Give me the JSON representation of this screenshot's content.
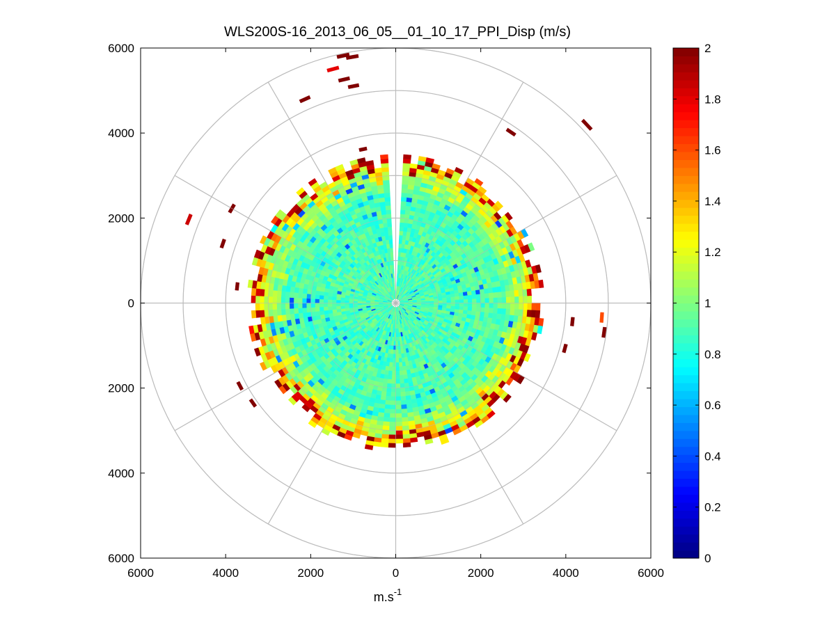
{
  "chart_data": {
    "type": "heatmap",
    "subtype": "polar-ppi",
    "title": "WLS200S-16_2013_06_05__01_10_17_PPI_Disp (m/s)",
    "xlabel_base": "m.s",
    "xlabel_sup": "-1",
    "xlim": [
      -6000,
      6000
    ],
    "ylim": [
      -6000,
      6000
    ],
    "x_ticks": [
      -6000,
      -4000,
      -2000,
      0,
      2000,
      4000,
      6000
    ],
    "x_tick_labels": [
      "6000",
      "4000",
      "2000",
      "0",
      "2000",
      "4000",
      "6000"
    ],
    "y_ticks": [
      6000,
      4000,
      2000,
      0,
      -2000,
      -4000,
      -6000
    ],
    "y_tick_labels": [
      "6000",
      "4000",
      "2000",
      "0",
      "2000",
      "4000",
      "6000"
    ],
    "rings_m": [
      1000,
      2000,
      3000,
      4000,
      5000,
      6000
    ],
    "spokes_deg": [
      0,
      30,
      60,
      90,
      120,
      150,
      180,
      210,
      240,
      270,
      300,
      330
    ],
    "colorbar": {
      "min": 0,
      "max": 2,
      "ticks": [
        0,
        0.2,
        0.4,
        0.6,
        0.8,
        1,
        1.2,
        1.4,
        1.6,
        1.8,
        2
      ],
      "tick_labels": [
        "0",
        "0.2",
        "0.4",
        "0.6",
        "0.8",
        "1",
        "1.2",
        "1.4",
        "1.6",
        "1.8",
        "2"
      ],
      "colormap": "jet"
    },
    "scan": {
      "azimuth_step_deg": 3,
      "range_step_m": 100,
      "core_max_range_m": 3400,
      "gap_azimuth_deg": [
        356,
        4
      ],
      "median_value": 0.9
    },
    "outliers": [
      {
        "az_deg": 350,
        "range_m": 5880,
        "value": 2.0
      },
      {
        "az_deg": 348,
        "range_m": 5950,
        "value": 2.0
      },
      {
        "az_deg": 347,
        "range_m": 5400,
        "value": 2.0
      },
      {
        "az_deg": 345,
        "range_m": 5700,
        "value": 1.8
      },
      {
        "az_deg": 349,
        "range_m": 5200,
        "value": 2.0
      },
      {
        "az_deg": 336,
        "range_m": 5250,
        "value": 2.0
      },
      {
        "az_deg": 348,
        "range_m": 3700,
        "value": 2.0
      },
      {
        "az_deg": 34,
        "range_m": 4850,
        "value": 2.0
      },
      {
        "az_deg": 47,
        "range_m": 6150,
        "value": 2.0
      },
      {
        "az_deg": 300,
        "range_m": 4450,
        "value": 2.0
      },
      {
        "az_deg": 292,
        "range_m": 5250,
        "value": 1.85
      },
      {
        "az_deg": 289,
        "range_m": 4300,
        "value": 2.0
      },
      {
        "az_deg": 276,
        "range_m": 3750,
        "value": 2.0
      },
      {
        "az_deg": 96,
        "range_m": 4180,
        "value": 2.0
      },
      {
        "az_deg": 94,
        "range_m": 4860,
        "value": 1.6
      },
      {
        "az_deg": 98,
        "range_m": 4950,
        "value": 2.0
      },
      {
        "az_deg": 105,
        "range_m": 4120,
        "value": 2.0
      },
      {
        "az_deg": 242,
        "range_m": 4150,
        "value": 2.0
      },
      {
        "az_deg": 235,
        "range_m": 4100,
        "value": 2.0
      }
    ]
  }
}
